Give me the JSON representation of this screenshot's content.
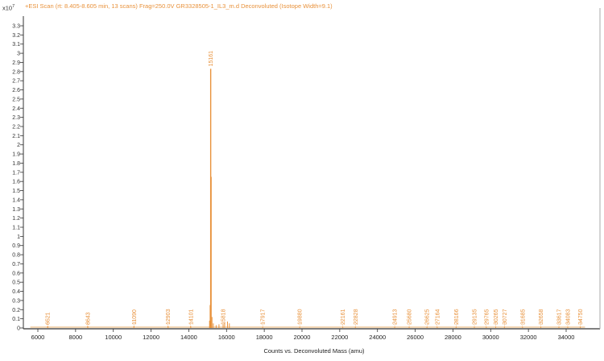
{
  "chart_data": {
    "type": "bar",
    "subtype": "mass-spectrum-stick",
    "title": "+ESI Scan (rt: 8.405-8.605 min, 13 scans) Frag=250.0V GR3328505-1_IL3_m.d  Deconvoluted (Isotope Width=9.1)",
    "xlabel": "Counts vs. Deconvoluted Mass (amu)",
    "ylabel": "",
    "y_multiplier": "x10^7",
    "y_exponent_label": "x10",
    "y_exponent": "7",
    "xlim": [
      5400,
      35600
    ],
    "ylim": [
      0,
      3.3
    ],
    "xticks": [
      6000,
      8000,
      10000,
      12000,
      14000,
      16000,
      18000,
      20000,
      22000,
      24000,
      26000,
      28000,
      30000,
      32000,
      34000
    ],
    "yticks": [
      0,
      0.1,
      0.2,
      0.3,
      0.4,
      0.5,
      0.6,
      0.7,
      0.8,
      0.9,
      1,
      1.1,
      1.2,
      1.3,
      1.4,
      1.5,
      1.6,
      1.7,
      1.8,
      1.9,
      2,
      2.1,
      2.2,
      2.3,
      2.4,
      2.5,
      2.6,
      2.7,
      2.8,
      2.9,
      3,
      3.1,
      3.2,
      3.3
    ],
    "grid": false,
    "legend": null,
    "series_color": "#e8913a",
    "peaks": [
      {
        "mass": 6521,
        "intensity": 0.02,
        "label": "6521"
      },
      {
        "mass": 8643,
        "intensity": 0.02,
        "label": "8643"
      },
      {
        "mass": 11090,
        "intensity": 0.02,
        "label": "11090"
      },
      {
        "mass": 12903,
        "intensity": 0.02,
        "label": "12903"
      },
      {
        "mass": 14101,
        "intensity": 0.02,
        "label": "14101"
      },
      {
        "mass": 15161,
        "intensity": 2.83,
        "label": "15161"
      },
      {
        "mass": 15818,
        "intensity": 0.04,
        "label": "15818"
      },
      {
        "mass": 17917,
        "intensity": 0.01,
        "label": "17917"
      },
      {
        "mass": 19880,
        "intensity": 0.01,
        "label": "19880"
      },
      {
        "mass": 22161,
        "intensity": 0.01,
        "label": "22161"
      },
      {
        "mass": 22828,
        "intensity": 0.01,
        "label": "22828"
      },
      {
        "mass": 24913,
        "intensity": 0.01,
        "label": "24913"
      },
      {
        "mass": 25680,
        "intensity": 0.01,
        "label": "25680"
      },
      {
        "mass": 26625,
        "intensity": 0.01,
        "label": "26625"
      },
      {
        "mass": 27164,
        "intensity": 0.01,
        "label": "27164"
      },
      {
        "mass": 28166,
        "intensity": 0.01,
        "label": "28166"
      },
      {
        "mass": 29135,
        "intensity": 0.01,
        "label": "29135"
      },
      {
        "mass": 29765,
        "intensity": 0.01,
        "label": "29765"
      },
      {
        "mass": 30265,
        "intensity": 0.01,
        "label": "30265"
      },
      {
        "mass": 30727,
        "intensity": 0.01,
        "label": "30727"
      },
      {
        "mass": 31685,
        "intensity": 0.01,
        "label": "31685"
      },
      {
        "mass": 32658,
        "intensity": 0.01,
        "label": "32658"
      },
      {
        "mass": 33617,
        "intensity": 0.01,
        "label": "33617"
      },
      {
        "mass": 34083,
        "intensity": 0.01,
        "label": "34083"
      },
      {
        "mass": 34750,
        "intensity": 0.01,
        "label": "34750"
      }
    ],
    "minor_peaks": [
      {
        "mass": 15100,
        "intensity": 0.08
      },
      {
        "mass": 15130,
        "intensity": 0.25
      },
      {
        "mass": 15190,
        "intensity": 1.65
      },
      {
        "mass": 15230,
        "intensity": 0.12
      },
      {
        "mass": 15300,
        "intensity": 0.05
      },
      {
        "mass": 15450,
        "intensity": 0.03
      },
      {
        "mass": 15600,
        "intensity": 0.04
      },
      {
        "mass": 15900,
        "intensity": 0.06
      },
      {
        "mass": 16050,
        "intensity": 0.07
      },
      {
        "mass": 16150,
        "intensity": 0.05
      }
    ]
  }
}
